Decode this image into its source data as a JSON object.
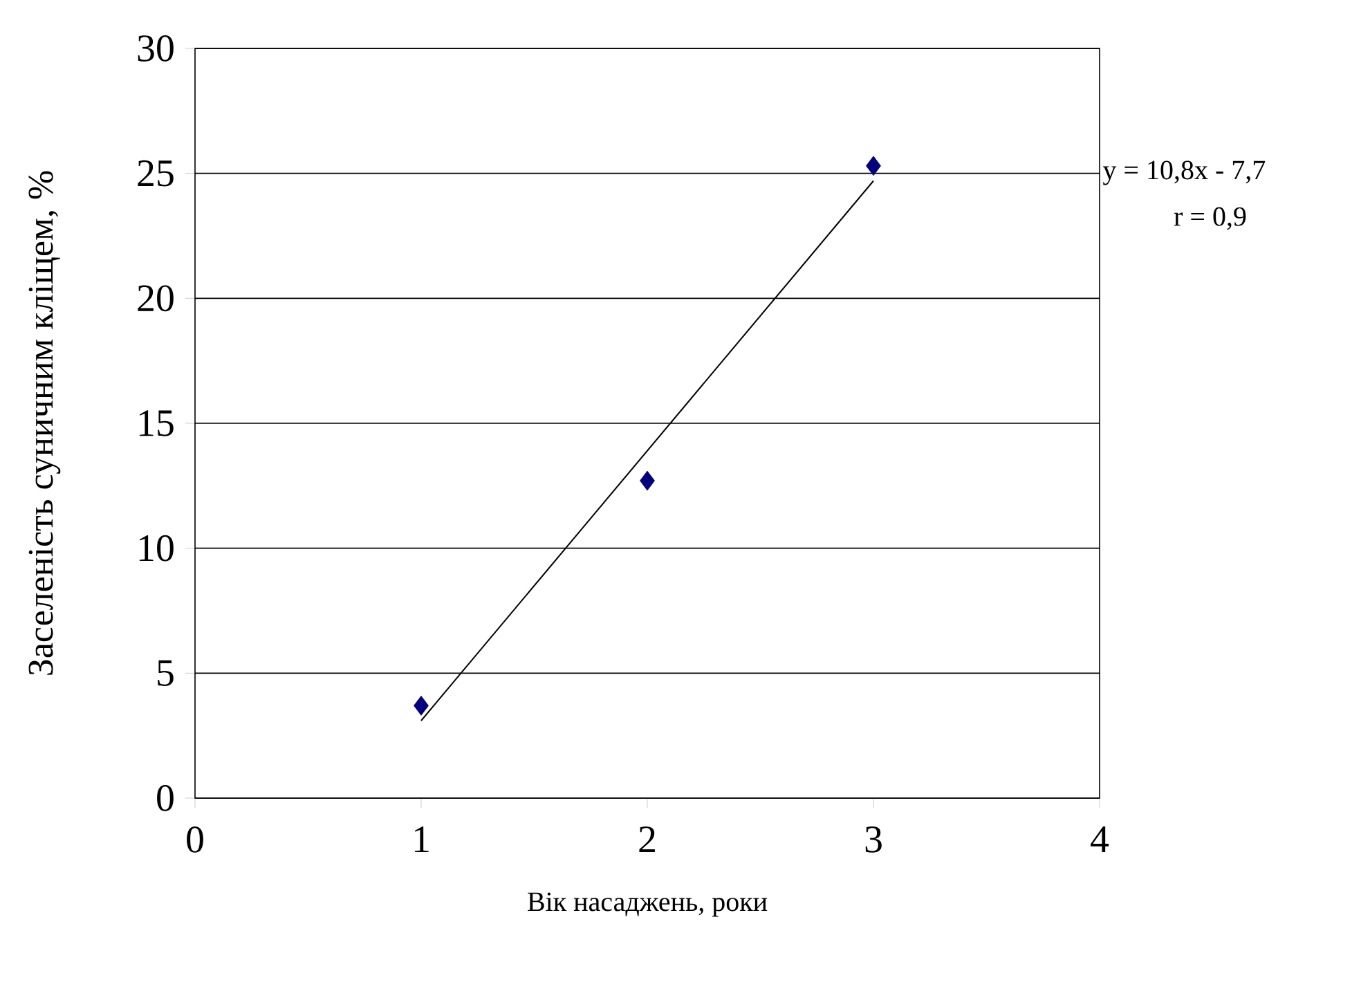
{
  "chart_data": {
    "type": "scatter",
    "xlabel": "Вік насаджень, роки",
    "ylabel": "Заселеність суничним кліщем, %",
    "xlim": [
      0,
      4
    ],
    "xticks": [
      0,
      1,
      2,
      3,
      4
    ],
    "ylim": [
      0,
      30
    ],
    "yticks": [
      0,
      5,
      10,
      15,
      20,
      25,
      30
    ],
    "grid": "y",
    "annotations": [
      "y = 10,8x - 7,7",
      "r = 0,9"
    ],
    "series": [
      {
        "color": "#000080",
        "marker": "diamond",
        "x": [
          1,
          2,
          3
        ],
        "values": [
          3.7,
          12.7,
          25.3
        ]
      },
      {
        "type": "line",
        "color": "#000000",
        "marker": "none",
        "line_style": "solid",
        "x": [
          1,
          3
        ],
        "values": [
          3.1,
          24.7
        ]
      }
    ]
  }
}
